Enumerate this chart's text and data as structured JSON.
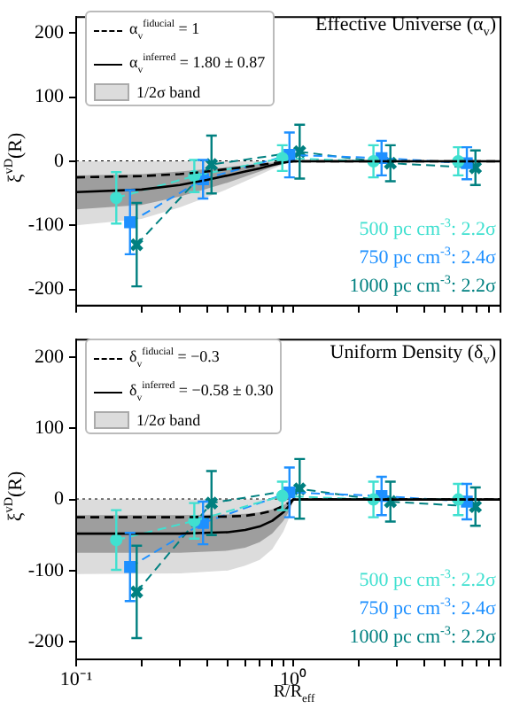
{
  "chart_data": [
    {
      "type": "line",
      "title": "Effective Universe (α$_{v}$)",
      "ylabel": "ξ$^{vD}$(R)",
      "log": "x",
      "xlim": [
        0.1,
        9
      ],
      "ylim": [
        -225,
        225
      ],
      "xticks": [
        {
          "value": 0.1,
          "label": null
        },
        {
          "value": 0.2,
          "label": null
        },
        {
          "value": 0.3,
          "label": null
        },
        {
          "value": 0.4,
          "label": null
        },
        {
          "value": 0.5,
          "label": null
        },
        {
          "value": 0.6,
          "label": null
        },
        {
          "value": 0.7,
          "label": null
        },
        {
          "value": 0.8,
          "label": null
        },
        {
          "value": 0.9,
          "label": null
        },
        {
          "value": 1,
          "label": null
        },
        {
          "value": 2,
          "label": null
        },
        {
          "value": 3,
          "label": null
        },
        {
          "value": 4,
          "label": null
        },
        {
          "value": 5,
          "label": null
        },
        {
          "value": 6,
          "label": null
        },
        {
          "value": 7,
          "label": null
        },
        {
          "value": 8,
          "label": null
        },
        {
          "value": 9,
          "label": null
        }
      ],
      "yticks": [
        -200,
        -100,
        0,
        100,
        200
      ],
      "tick_labels": "y",
      "legend": "top left",
      "grid": false,
      "ref_lines": [
        {
          "axis": "y",
          "value": 0,
          "line_style": "dotted",
          "color": "#000000"
        }
      ],
      "series": [
        {
          "name": "α$_{v}$$^{fiducial}$ = 1",
          "color": "#000000",
          "line_style": "dashed",
          "marker": "none",
          "x": [
            0.1,
            0.2,
            0.3,
            0.4,
            0.5,
            0.6,
            0.7,
            0.8,
            0.9,
            1,
            9
          ],
          "values": [
            -25,
            -23,
            -20,
            -16,
            -12,
            -9,
            -6,
            -3,
            -1,
            0,
            0
          ]
        },
        {
          "name": "α$_{v}$$^{inferred}$ = 1.80 ± 0.87",
          "color": "#000000",
          "line_style": "solid",
          "marker": "none",
          "x": [
            0.1,
            0.2,
            0.3,
            0.4,
            0.5,
            0.6,
            0.7,
            0.8,
            0.9,
            1,
            9
          ],
          "values": [
            -48,
            -44,
            -37,
            -29,
            -22,
            -16,
            -11,
            -6,
            -2,
            0,
            0
          ],
          "lower": [
            -75,
            -68,
            -55,
            -43,
            -33,
            -24,
            -16,
            -9,
            -4,
            0,
            0
          ],
          "upper": [
            -22,
            -20,
            -16,
            -12,
            -9,
            -6,
            -4,
            -2,
            -1,
            0,
            0
          ]
        },
        {
          "name": "1/2σ band",
          "type": "area",
          "color": "#dcdcdc",
          "x": [
            0.1,
            0.2,
            0.3,
            0.4,
            0.5,
            0.6,
            0.7,
            0.8,
            0.9,
            1
          ],
          "values": [
            null,
            null,
            null,
            null,
            null,
            null,
            null,
            null,
            null,
            null
          ],
          "lower": [
            -100,
            -90,
            -72,
            -56,
            -43,
            -31,
            -21,
            -12,
            -5,
            0
          ],
          "upper": [
            0,
            0,
            0,
            0,
            0,
            0,
            0,
            0,
            0,
            0
          ]
        },
        {
          "name": "500 pc cm$^{-3}$: 2.2σ",
          "type": "line",
          "color": "#40e0d0",
          "line_style": "dashed",
          "marker": "circle",
          "x": [
            0.153,
            0.35,
            0.89,
            2.34,
            5.75
          ],
          "values": [
            -57,
            -23,
            5,
            0,
            0
          ],
          "errors": [
            40,
            25,
            20,
            25,
            22
          ]
        },
        {
          "name": "750 pc cm$^{-3}$: 2.4σ",
          "type": "line",
          "color": "#1e90ff",
          "line_style": "dashed",
          "marker": "square",
          "x": [
            0.177,
            0.384,
            0.96,
            2.55,
            6.3
          ],
          "values": [
            -95,
            -28,
            10,
            5,
            -3
          ],
          "errors": [
            50,
            30,
            35,
            27,
            25
          ]
        },
        {
          "name": "1000 pc cm$^{-3}$: 2.2σ",
          "type": "line",
          "color": "#008080",
          "line_style": "dashed",
          "marker": "cross",
          "x": [
            0.19,
            0.42,
            1.07,
            2.8,
            6.9
          ],
          "values": [
            -130,
            -5,
            15,
            -3,
            -10
          ],
          "errors": [
            65,
            45,
            42,
            28,
            27
          ]
        }
      ]
    },
    {
      "type": "line",
      "title": "Uniform Density (δ$_{v}$)",
      "xlabel": "R/R$_{eff}$",
      "ylabel": "ξ$^{vD}$(R)",
      "log": "x",
      "xlim": [
        0.1,
        9
      ],
      "ylim": [
        -225,
        225
      ],
      "xticks": [
        {
          "value": 0.1,
          "label": "10⁻¹"
        },
        {
          "value": 0.2,
          "label": null
        },
        {
          "value": 0.3,
          "label": null
        },
        {
          "value": 0.4,
          "label": null
        },
        {
          "value": 0.5,
          "label": null
        },
        {
          "value": 0.6,
          "label": null
        },
        {
          "value": 0.7,
          "label": null
        },
        {
          "value": 0.8,
          "label": null
        },
        {
          "value": 0.9,
          "label": null
        },
        {
          "value": 1,
          "label": "10⁰"
        },
        {
          "value": 2,
          "label": null
        },
        {
          "value": 3,
          "label": null
        },
        {
          "value": 4,
          "label": null
        },
        {
          "value": 5,
          "label": null
        },
        {
          "value": 6,
          "label": null
        },
        {
          "value": 7,
          "label": null
        },
        {
          "value": 8,
          "label": null
        },
        {
          "value": 9,
          "label": null
        }
      ],
      "yticks": [
        -200,
        -100,
        0,
        100,
        200
      ],
      "legend": "top left",
      "grid": false,
      "ref_lines": [
        {
          "axis": "y",
          "value": 0,
          "line_style": "dotted",
          "color": "#000000"
        }
      ],
      "series": [
        {
          "name": "δ$_{v}$$^{fiducial}$ = −0.3",
          "color": "#000000",
          "line_style": "dashed",
          "marker": "none",
          "x": [
            0.1,
            0.3,
            0.5,
            0.6,
            0.7,
            0.8,
            0.9,
            0.95,
            1,
            9
          ],
          "values": [
            -25,
            -25,
            -24,
            -23,
            -20,
            -16,
            -9,
            -5,
            0,
            0
          ]
        },
        {
          "name": "δ$_{v}$$^{inferred}$ = −0.58 ± 0.30",
          "color": "#000000",
          "line_style": "solid",
          "marker": "none",
          "x": [
            0.1,
            0.3,
            0.5,
            0.6,
            0.7,
            0.8,
            0.9,
            0.95,
            1,
            9
          ],
          "values": [
            -48,
            -48,
            -46,
            -43,
            -38,
            -30,
            -18,
            -10,
            0,
            0
          ],
          "lower": [
            -75,
            -75,
            -72,
            -68,
            -60,
            -48,
            -30,
            -18,
            0,
            0
          ],
          "upper": [
            -22,
            -22,
            -21,
            -20,
            -18,
            -14,
            -8,
            -4,
            0,
            0
          ]
        },
        {
          "name": "1/2σ band",
          "type": "area",
          "color": "#dcdcdc",
          "x": [
            0.1,
            0.3,
            0.5,
            0.6,
            0.7,
            0.8,
            0.9,
            0.95,
            1
          ],
          "values": [
            null,
            null,
            null,
            null,
            null,
            null,
            null,
            null,
            null
          ],
          "lower": [
            -105,
            -104,
            -100,
            -93,
            -85,
            -70,
            -45,
            -28,
            0
          ],
          "upper": [
            0,
            0,
            0,
            0,
            0,
            0,
            0,
            0,
            0
          ]
        },
        {
          "name": "500 pc cm$^{-3}$: 2.2σ",
          "type": "line",
          "color": "#40e0d0",
          "line_style": "dashed",
          "marker": "circle",
          "x": [
            0.153,
            0.35,
            0.89,
            2.34,
            5.75
          ],
          "values": [
            -57,
            -30,
            5,
            0,
            0
          ],
          "errors": [
            42,
            25,
            20,
            25,
            22
          ]
        },
        {
          "name": "750 pc cm$^{-3}$: 2.4σ",
          "type": "line",
          "color": "#1e90ff",
          "line_style": "dashed",
          "marker": "square",
          "x": [
            0.177,
            0.384,
            0.96,
            2.55,
            6.3
          ],
          "values": [
            -95,
            -33,
            10,
            5,
            -3
          ],
          "errors": [
            48,
            30,
            35,
            27,
            25
          ]
        },
        {
          "name": "1000 pc cm$^{-3}$: 2.2σ",
          "type": "line",
          "color": "#008080",
          "line_style": "dashed",
          "marker": "cross",
          "x": [
            0.19,
            0.42,
            1.07,
            2.8,
            6.9
          ],
          "values": [
            -130,
            -5,
            15,
            -3,
            -10
          ],
          "errors": [
            65,
            45,
            42,
            28,
            27
          ]
        }
      ]
    }
  ]
}
